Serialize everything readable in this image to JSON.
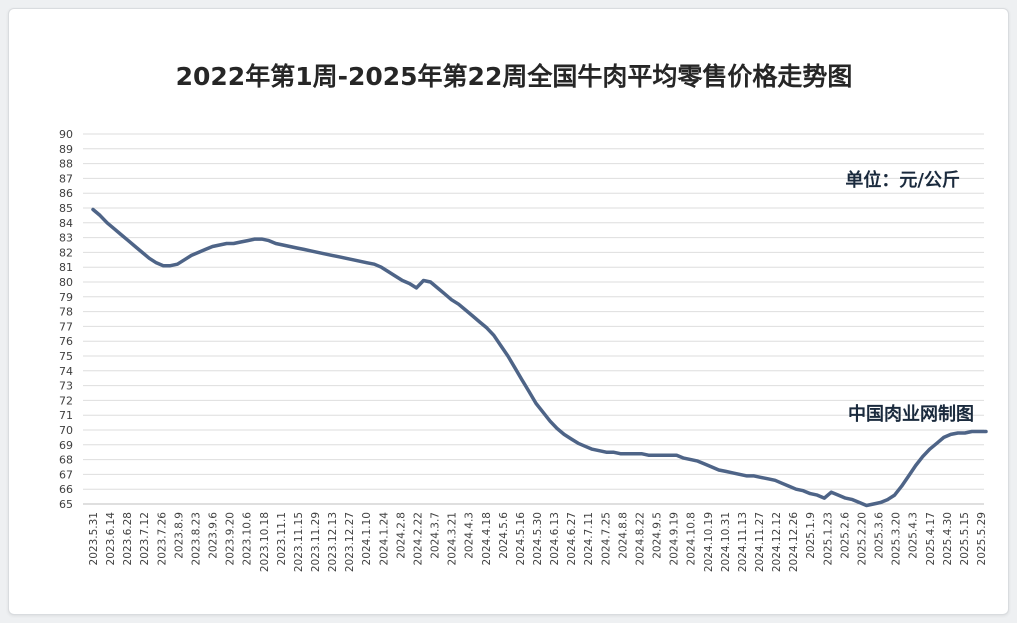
{
  "chart_data": {
    "type": "line",
    "title": "2022年第1周-2025年第22周全国牛肉平均零售价格走势图",
    "xlabel": "",
    "ylabel": "",
    "unit_note": "单位：元/公斤",
    "source_note": "中国肉业网制图",
    "ylim": [
      65,
      90
    ],
    "yticks": [
      65,
      66,
      67,
      68,
      69,
      70,
      71,
      72,
      73,
      74,
      75,
      76,
      77,
      78,
      79,
      80,
      81,
      82,
      83,
      84,
      85,
      86,
      87,
      88,
      89,
      90
    ],
    "grid": true,
    "legend": "none",
    "x_tick_labels": [
      "2023.5.31",
      "2023.6.14",
      "2023.6.28",
      "2023.7.12",
      "2023.7.26",
      "2023.8.9",
      "2023.8.23",
      "2023.9.6",
      "2023.9.20",
      "2023.10.6",
      "2023.10.18",
      "2023.11.1",
      "2023.11.15",
      "2023.11.29",
      "2023.12.13",
      "2023.12.27",
      "2024.1.10",
      "2024.1.24",
      "2024.2.8",
      "2024.2.22",
      "2024.3.7",
      "2024.3.21",
      "2024.4.3",
      "2024.4.18",
      "2024.5.6",
      "2024.5.16",
      "2024.5.30",
      "2024.6.13",
      "2024.6.27",
      "2024.7.11",
      "2024.7.25",
      "2024.8.8",
      "2024.8.22",
      "2024.9.5",
      "2024.9.19",
      "2024.10.8",
      "2024.10.19",
      "2024.10.31",
      "2024.11.13",
      "2024.11.27",
      "2024.12.12",
      "2024.12.26",
      "2025.1.9",
      "2025.1.23",
      "2025.2.6",
      "2025.2.20",
      "2025.3.6",
      "2025.3.20",
      "2025.4.3",
      "2025.4.17",
      "2025.4.30",
      "2025.5.15",
      "2025.5.29"
    ],
    "series": [
      {
        "color": "#4e6487",
        "values": [
          84.9,
          84.5,
          84.0,
          83.6,
          83.2,
          82.8,
          82.4,
          82.0,
          81.6,
          81.3,
          81.1,
          81.1,
          81.2,
          81.5,
          81.8,
          82.0,
          82.2,
          82.4,
          82.5,
          82.6,
          82.6,
          82.7,
          82.8,
          82.9,
          82.9,
          82.8,
          82.6,
          82.5,
          82.4,
          82.3,
          82.2,
          82.1,
          82.0,
          81.9,
          81.8,
          81.7,
          81.6,
          81.5,
          81.4,
          81.3,
          81.2,
          81.0,
          80.7,
          80.4,
          80.1,
          79.9,
          79.6,
          80.1,
          80.0,
          79.6,
          79.2,
          78.8,
          78.5,
          78.1,
          77.7,
          77.3,
          76.9,
          76.4,
          75.7,
          75.0,
          74.2,
          73.4,
          72.6,
          71.8,
          71.2,
          70.6,
          70.1,
          69.7,
          69.4,
          69.1,
          68.9,
          68.7,
          68.6,
          68.5,
          68.5,
          68.4,
          68.4,
          68.4,
          68.4,
          68.3,
          68.3,
          68.3,
          68.3,
          68.3,
          68.1,
          68.0,
          67.9,
          67.7,
          67.5,
          67.3,
          67.2,
          67.1,
          67.0,
          66.9,
          66.9,
          66.8,
          66.7,
          66.6,
          66.4,
          66.2,
          66.0,
          65.9,
          65.7,
          65.6,
          65.4,
          65.8,
          65.6,
          65.4,
          65.3,
          65.1,
          64.9,
          65.0,
          65.1,
          65.3,
          65.6,
          66.2,
          66.9,
          67.6,
          68.2,
          68.7,
          69.1,
          69.5,
          69.7,
          69.8,
          69.8,
          69.9,
          69.9,
          69.9
        ]
      }
    ]
  }
}
